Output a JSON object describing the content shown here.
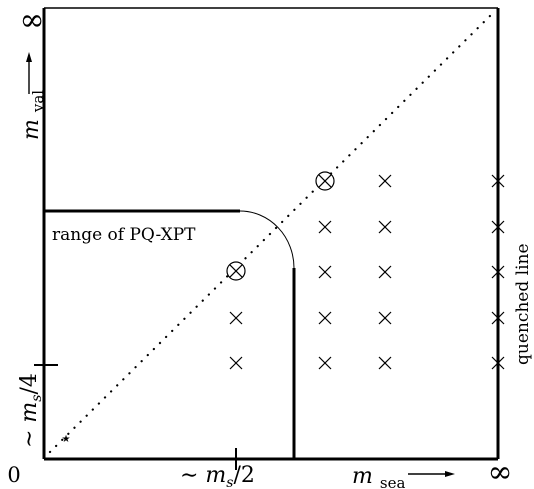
{
  "axes": {
    "origin_label": "0",
    "x_infinity_label": "∞",
    "y_infinity_label": "∞",
    "x_axis_symbol": "m",
    "x_axis_subscript": "sea",
    "y_axis_symbol": "m",
    "y_axis_subscript": "val",
    "x_tick_label": "∼ m_s/2",
    "x_tick_prefix": "∼ m",
    "x_tick_sub": "s",
    "x_tick_suffix": "/2",
    "y_tick_label": "∼ m_s/4",
    "y_tick_prefix": "∼ m",
    "y_tick_sub": "s",
    "y_tick_suffix": "/4"
  },
  "annotations": {
    "range_label": "range of PQ-XPT",
    "quenched_label": "quenched line"
  },
  "markers": {
    "cross_symbol": "×",
    "circled_cross_symbol": "⊗",
    "star_symbol": "⋆"
  }
}
